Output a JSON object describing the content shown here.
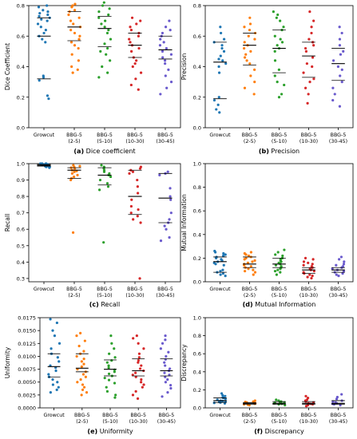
{
  "figure": {
    "background": "#ffffff"
  },
  "colors": {
    "Growcut": "#1f77b4",
    "BBG-5 (2-5)": "#ff7f0e",
    "BBG-5 (5-10)": "#2ca02c",
    "BBG-5 (10-30)": "#d62728",
    "BBG-5 (30-45)": "#6a5acd",
    "median_line": "#000000",
    "quartile_line": "#000000"
  },
  "chart_data": [
    {
      "type": "scatter",
      "caption_letter": "(a)",
      "caption_title": "Dice coefficient",
      "ylabel": "Dice Coefficient",
      "ylim": [
        0.0,
        0.8
      ],
      "yticks": [
        "0.0",
        "0.2",
        "0.4",
        "0.6",
        "0.8"
      ],
      "ytick_values": [
        0.0,
        0.2,
        0.4,
        0.6,
        0.8
      ],
      "categories": [
        [
          "Growcut"
        ],
        [
          "BBG-5",
          "(2-5)"
        ],
        [
          "BBG-5",
          "(5-10)"
        ],
        [
          "BBG-5",
          "(10-30)"
        ],
        [
          "BBG-5",
          "(30-45)"
        ]
      ],
      "series": [
        {
          "name": "Growcut",
          "values": [
            0.8,
            0.79,
            0.77,
            0.76,
            0.75,
            0.74,
            0.73,
            0.72,
            0.71,
            0.7,
            0.68,
            0.66,
            0.64,
            0.62,
            0.6,
            0.58,
            0.56,
            0.34,
            0.33,
            0.31,
            0.21,
            0.19
          ],
          "median": 0.6,
          "q1": 0.32,
          "q3": 0.72
        },
        {
          "name": "BBG-5 (2-5)",
          "values": [
            0.81,
            0.8,
            0.79,
            0.77,
            0.76,
            0.74,
            0.72,
            0.7,
            0.68,
            0.66,
            0.64,
            0.62,
            0.6,
            0.58,
            0.56,
            0.54,
            0.52,
            0.48,
            0.44,
            0.4,
            0.38,
            0.36
          ],
          "median": 0.66,
          "q1": 0.57,
          "q3": 0.76
        },
        {
          "name": "BBG-5 (5-10)",
          "values": [
            0.82,
            0.8,
            0.78,
            0.76,
            0.74,
            0.72,
            0.7,
            0.68,
            0.66,
            0.64,
            0.62,
            0.58,
            0.55,
            0.52,
            0.5,
            0.48,
            0.44,
            0.4,
            0.36,
            0.33
          ],
          "median": 0.65,
          "q1": 0.53,
          "q3": 0.73
        },
        {
          "name": "BBG-5 (10-30)",
          "values": [
            0.72,
            0.7,
            0.68,
            0.66,
            0.64,
            0.62,
            0.6,
            0.58,
            0.56,
            0.54,
            0.52,
            0.5,
            0.46,
            0.44,
            0.42,
            0.4,
            0.36,
            0.32,
            0.28,
            0.25
          ],
          "median": 0.54,
          "q1": 0.46,
          "q3": 0.62
        },
        {
          "name": "BBG-5 (30-45)",
          "values": [
            0.7,
            0.66,
            0.64,
            0.62,
            0.6,
            0.58,
            0.56,
            0.54,
            0.52,
            0.5,
            0.48,
            0.46,
            0.44,
            0.42,
            0.38,
            0.34,
            0.3,
            0.26,
            0.22
          ],
          "median": 0.51,
          "q1": 0.45,
          "q3": 0.6
        }
      ]
    },
    {
      "type": "scatter",
      "caption_letter": "(b)",
      "caption_title": "Precision",
      "ylabel": "Precision",
      "ylim": [
        0.0,
        0.8
      ],
      "yticks": [
        "0.0",
        "0.2",
        "0.4",
        "0.6",
        "0.8"
      ],
      "ytick_values": [
        0.0,
        0.2,
        0.4,
        0.6,
        0.8
      ],
      "categories": [
        [
          "Growcut"
        ],
        [
          "BBG-5",
          "(2-5)"
        ],
        [
          "BBG-5",
          "(5-10)"
        ],
        [
          "BBG-5",
          "(10-30)"
        ],
        [
          "BBG-5",
          "(30-45)"
        ]
      ],
      "series": [
        {
          "name": "Growcut",
          "values": [
            0.66,
            0.62,
            0.58,
            0.56,
            0.54,
            0.52,
            0.5,
            0.47,
            0.45,
            0.44,
            0.42,
            0.4,
            0.36,
            0.2,
            0.18,
            0.15,
            0.12,
            0.1
          ],
          "median": 0.43,
          "q1": 0.19,
          "q3": 0.56
        },
        {
          "name": "BBG-5 (2-5)",
          "values": [
            0.72,
            0.68,
            0.66,
            0.64,
            0.62,
            0.6,
            0.58,
            0.56,
            0.54,
            0.52,
            0.5,
            0.48,
            0.46,
            0.44,
            0.42,
            0.38,
            0.34,
            0.3,
            0.26,
            0.22
          ],
          "median": 0.54,
          "q1": 0.41,
          "q3": 0.62
        },
        {
          "name": "BBG-5 (5-10)",
          "values": [
            0.76,
            0.74,
            0.72,
            0.7,
            0.66,
            0.64,
            0.6,
            0.58,
            0.56,
            0.54,
            0.52,
            0.5,
            0.44,
            0.38,
            0.34,
            0.3,
            0.28,
            0.22,
            0.2
          ],
          "median": 0.52,
          "q1": 0.36,
          "q3": 0.64
        },
        {
          "name": "BBG-5 (10-30)",
          "values": [
            0.76,
            0.7,
            0.66,
            0.62,
            0.58,
            0.56,
            0.54,
            0.52,
            0.5,
            0.46,
            0.42,
            0.4,
            0.36,
            0.32,
            0.3,
            0.26,
            0.22,
            0.16
          ],
          "median": 0.47,
          "q1": 0.33,
          "q3": 0.56
        },
        {
          "name": "BBG-5 (30-45)",
          "values": [
            0.66,
            0.62,
            0.58,
            0.54,
            0.5,
            0.48,
            0.44,
            0.4,
            0.38,
            0.34,
            0.3,
            0.26,
            0.22,
            0.18,
            0.14
          ],
          "median": 0.42,
          "q1": 0.31,
          "q3": 0.52
        }
      ]
    },
    {
      "type": "scatter",
      "caption_letter": "(c)",
      "caption_title": "Recall",
      "ylabel": "Recall",
      "ylim": [
        0.28,
        1.0
      ],
      "yticks": [
        "0.3",
        "0.4",
        "0.5",
        "0.6",
        "0.7",
        "0.8",
        "0.9",
        "1.0"
      ],
      "ytick_values": [
        0.3,
        0.4,
        0.5,
        0.6,
        0.7,
        0.8,
        0.9,
        1.0
      ],
      "categories": [
        [
          "Growcut"
        ],
        [
          "BBG-5",
          "(2-5)"
        ],
        [
          "BBG-5",
          "(5-10)"
        ],
        [
          "BBG-5",
          "(10-30)"
        ],
        [
          "BBG-5",
          "(30-45)"
        ]
      ],
      "series": [
        {
          "name": "Growcut",
          "values": [
            1.0,
            1.0,
            1.0,
            1.0,
            1.0,
            0.995,
            0.995,
            0.99,
            0.99,
            0.99,
            0.985,
            0.985,
            0.98,
            0.98,
            0.975
          ],
          "median": 0.99,
          "q1": 0.985,
          "q3": 0.995
        },
        {
          "name": "BBG-5 (2-5)",
          "values": [
            0.99,
            0.985,
            0.98,
            0.975,
            0.97,
            0.96,
            0.955,
            0.95,
            0.94,
            0.93,
            0.92,
            0.91,
            0.9,
            0.58
          ],
          "median": 0.96,
          "q1": 0.91,
          "q3": 0.975
        },
        {
          "name": "BBG-5 (5-10)",
          "values": [
            0.99,
            0.98,
            0.97,
            0.96,
            0.95,
            0.94,
            0.93,
            0.92,
            0.9,
            0.88,
            0.86,
            0.84,
            0.52
          ],
          "median": 0.93,
          "q1": 0.87,
          "q3": 0.975
        },
        {
          "name": "BBG-5 (10-30)",
          "values": [
            0.98,
            0.97,
            0.96,
            0.95,
            0.94,
            0.9,
            0.86,
            0.82,
            0.78,
            0.74,
            0.72,
            0.7,
            0.68,
            0.66,
            0.64,
            0.3
          ],
          "median": 0.8,
          "q1": 0.69,
          "q3": 0.96
        },
        {
          "name": "BBG-5 (30-45)",
          "values": [
            0.95,
            0.94,
            0.93,
            0.85,
            0.8,
            0.78,
            0.7,
            0.66,
            0.64,
            0.62,
            0.6,
            0.55,
            0.53
          ],
          "median": 0.79,
          "q1": 0.64,
          "q3": 0.94
        }
      ]
    },
    {
      "type": "scatter",
      "caption_letter": "(d)",
      "caption_title": "Mutual Information",
      "ylabel": "Mutual Information",
      "ylim": [
        0.0,
        1.0
      ],
      "yticks": [
        "0.0",
        "0.2",
        "0.4",
        "0.6",
        "0.8",
        "1.0"
      ],
      "ytick_values": [
        0.0,
        0.2,
        0.4,
        0.6,
        0.8,
        1.0
      ],
      "categories": [
        [
          "Growcut"
        ],
        [
          "BBG-5",
          "(2-5)"
        ],
        [
          "BBG-5",
          "(5-10)"
        ],
        [
          "BBG-5",
          "(10-30)"
        ],
        [
          "BBG-5",
          "(30-45)"
        ]
      ],
      "series": [
        {
          "name": "Growcut",
          "values": [
            0.26,
            0.25,
            0.24,
            0.23,
            0.22,
            0.21,
            0.2,
            0.19,
            0.18,
            0.17,
            0.16,
            0.15,
            0.14,
            0.1,
            0.09,
            0.08,
            0.07,
            0.06,
            0.05
          ],
          "median": 0.17,
          "q1": 0.08,
          "q3": 0.21
        },
        {
          "name": "BBG-5 (2-5)",
          "values": [
            0.25,
            0.24,
            0.23,
            0.22,
            0.21,
            0.2,
            0.19,
            0.18,
            0.17,
            0.16,
            0.15,
            0.14,
            0.13,
            0.12,
            0.11,
            0.1,
            0.09,
            0.08,
            0.06
          ],
          "median": 0.15,
          "q1": 0.12,
          "q3": 0.21
        },
        {
          "name": "BBG-5 (5-10)",
          "values": [
            0.27,
            0.25,
            0.23,
            0.22,
            0.2,
            0.19,
            0.18,
            0.17,
            0.16,
            0.15,
            0.14,
            0.13,
            0.12,
            0.11,
            0.1,
            0.09,
            0.08,
            0.06
          ],
          "median": 0.15,
          "q1": 0.12,
          "q3": 0.2
        },
        {
          "name": "BBG-5 (10-30)",
          "values": [
            0.2,
            0.19,
            0.17,
            0.16,
            0.15,
            0.14,
            0.13,
            0.12,
            0.11,
            0.1,
            0.09,
            0.08,
            0.07,
            0.06,
            0.05,
            0.04,
            0.03
          ],
          "median": 0.1,
          "q1": 0.07,
          "q3": 0.12
        },
        {
          "name": "BBG-5 (30-45)",
          "values": [
            0.21,
            0.19,
            0.17,
            0.15,
            0.14,
            0.13,
            0.12,
            0.11,
            0.1,
            0.09,
            0.08,
            0.07,
            0.06,
            0.05
          ],
          "median": 0.1,
          "q1": 0.08,
          "q3": 0.12
        }
      ]
    },
    {
      "type": "scatter",
      "caption_letter": "(e)",
      "caption_title": "Uniformity",
      "ylabel": "Uniformity",
      "ylim": [
        0.0,
        0.0175
      ],
      "yticks": [
        "0.0000",
        "0.0025",
        "0.0050",
        "0.0075",
        "0.0100",
        "0.0125",
        "0.0150",
        "0.0175"
      ],
      "ytick_values": [
        0.0,
        0.0025,
        0.005,
        0.0075,
        0.01,
        0.0125,
        0.015,
        0.0175
      ],
      "categories": [
        [
          "Growcut"
        ],
        [
          "BBG-5",
          "(2-5)"
        ],
        [
          "BBG-5",
          "(5-10)"
        ],
        [
          "BBG-5",
          "(10-30)"
        ],
        [
          "BBG-5",
          "(30-45)"
        ]
      ],
      "series": [
        {
          "name": "Growcut",
          "values": [
            0.0172,
            0.0165,
            0.015,
            0.014,
            0.0125,
            0.0115,
            0.0105,
            0.0098,
            0.009,
            0.0082,
            0.0078,
            0.0072,
            0.0065,
            0.006,
            0.0055,
            0.005,
            0.0045,
            0.004,
            0.0035,
            0.003
          ],
          "median": 0.008,
          "q1": 0.006,
          "q3": 0.0105
        },
        {
          "name": "BBG-5 (2-5)",
          "values": [
            0.0145,
            0.014,
            0.013,
            0.012,
            0.011,
            0.0105,
            0.01,
            0.0095,
            0.009,
            0.0085,
            0.008,
            0.0075,
            0.007,
            0.0065,
            0.006,
            0.0055,
            0.005,
            0.0045,
            0.004,
            0.0035,
            0.003,
            0.0025
          ],
          "median": 0.0077,
          "q1": 0.007,
          "q3": 0.0105
        },
        {
          "name": "BBG-5 (5-10)",
          "values": [
            0.014,
            0.0125,
            0.0115,
            0.0105,
            0.0098,
            0.0092,
            0.0088,
            0.0082,
            0.0078,
            0.0074,
            0.007,
            0.0066,
            0.0062,
            0.0058,
            0.0054,
            0.0048,
            0.004,
            0.0032,
            0.0025,
            0.002
          ],
          "median": 0.0075,
          "q1": 0.0062,
          "q3": 0.0093
        },
        {
          "name": "BBG-5 (10-30)",
          "values": [
            0.014,
            0.0135,
            0.0125,
            0.0115,
            0.0105,
            0.0098,
            0.0092,
            0.0088,
            0.0082,
            0.0076,
            0.0072,
            0.0068,
            0.0064,
            0.006,
            0.0055,
            0.005,
            0.0045,
            0.004,
            0.0032,
            0.0025,
            0.0018
          ],
          "median": 0.0072,
          "q1": 0.0062,
          "q3": 0.0095
        },
        {
          "name": "BBG-5 (30-45)",
          "values": [
            0.014,
            0.0132,
            0.0125,
            0.0115,
            0.0108,
            0.01,
            0.0094,
            0.0088,
            0.0082,
            0.0076,
            0.0072,
            0.0068,
            0.0064,
            0.006,
            0.0055,
            0.005,
            0.0044,
            0.0038,
            0.003,
            0.0022
          ],
          "median": 0.0072,
          "q1": 0.0062,
          "q3": 0.0095
        }
      ]
    },
    {
      "type": "scatter",
      "caption_letter": "(f)",
      "caption_title": "Discrepancy",
      "ylabel": "Discrepancy",
      "ylim": [
        0.0,
        1.0
      ],
      "yticks": [
        "0.0",
        "0.2",
        "0.4",
        "0.6",
        "0.8",
        "1.0"
      ],
      "ytick_values": [
        0.0,
        0.2,
        0.4,
        0.6,
        0.8,
        1.0
      ],
      "categories": [
        [
          "Growcut"
        ],
        [
          "BBG-5",
          "(2-5)"
        ],
        [
          "BBG-5",
          "(5-10)"
        ],
        [
          "BBG-5",
          "(10-30)"
        ],
        [
          "BBG-5",
          "(30-45)"
        ]
      ],
      "series": [
        {
          "name": "Growcut",
          "values": [
            0.16,
            0.14,
            0.13,
            0.12,
            0.11,
            0.1,
            0.09,
            0.08,
            0.075,
            0.07,
            0.065,
            0.06,
            0.055,
            0.05
          ],
          "median": 0.08,
          "q1": 0.06,
          "q3": 0.11
        },
        {
          "name": "BBG-5 (2-5)",
          "values": [
            0.08,
            0.07,
            0.065,
            0.06,
            0.055,
            0.05,
            0.045,
            0.04,
            0.035,
            0.03
          ],
          "median": 0.05,
          "q1": 0.04,
          "q3": 0.06
        },
        {
          "name": "BBG-5 (5-10)",
          "values": [
            0.09,
            0.08,
            0.07,
            0.065,
            0.06,
            0.055,
            0.05,
            0.045,
            0.04,
            0.03
          ],
          "median": 0.05,
          "q1": 0.04,
          "q3": 0.07
        },
        {
          "name": "BBG-5 (10-30)",
          "values": [
            0.13,
            0.11,
            0.09,
            0.08,
            0.07,
            0.06,
            0.05,
            0.045,
            0.04,
            0.03,
            0.02
          ],
          "median": 0.05,
          "q1": 0.04,
          "q3": 0.07
        },
        {
          "name": "BBG-5 (30-45)",
          "values": [
            0.15,
            0.12,
            0.1,
            0.08,
            0.07,
            0.06,
            0.05,
            0.045,
            0.04,
            0.03
          ],
          "median": 0.05,
          "q1": 0.04,
          "q3": 0.08
        }
      ]
    }
  ]
}
